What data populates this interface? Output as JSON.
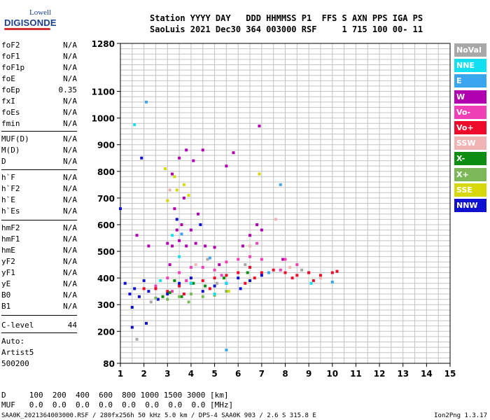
{
  "logo": {
    "top": "Lowell",
    "main": "DIGISONDE"
  },
  "header": {
    "line1": "Station YYYY DAY   DDD HHMMSS P1  FFS S AXN PPS IGA PS",
    "line2": "SaoLuis 2021 Dec30 364 003000 RSF     1 715 100 00- 11"
  },
  "params_group1": [
    {
      "name": "foF2",
      "value": "N/A"
    },
    {
      "name": "foF1",
      "value": "N/A"
    },
    {
      "name": "foF1p",
      "value": "N/A"
    },
    {
      "name": "foE",
      "value": "N/A"
    },
    {
      "name": "foEp",
      "value": "0.35"
    },
    {
      "name": "fxI",
      "value": "N/A"
    },
    {
      "name": "foEs",
      "value": "N/A"
    },
    {
      "name": "fmin",
      "value": "N/A"
    }
  ],
  "params_group2": [
    {
      "name": "MUF(D)",
      "value": "N/A"
    },
    {
      "name": "M(D)",
      "value": "N/A"
    },
    {
      "name": "D",
      "value": "N/A"
    }
  ],
  "params_group3": [
    {
      "name": "h`F",
      "value": "N/A"
    },
    {
      "name": "h`F2",
      "value": "N/A"
    },
    {
      "name": "h`E",
      "value": "N/A"
    },
    {
      "name": "h`Es",
      "value": "N/A"
    }
  ],
  "params_group4": [
    {
      "name": "hmF2",
      "value": "N/A"
    },
    {
      "name": "hmF1",
      "value": "N/A"
    },
    {
      "name": "hmE",
      "value": "N/A"
    },
    {
      "name": "yF2",
      "value": "N/A"
    },
    {
      "name": "yF1",
      "value": "N/A"
    },
    {
      "name": "yE",
      "value": "N/A"
    },
    {
      "name": "B0",
      "value": "N/A"
    },
    {
      "name": "B1",
      "value": "N/A"
    }
  ],
  "c_level": {
    "name": "C-level",
    "value": "44"
  },
  "auto": {
    "line1": "Auto:",
    "line2": "Artist5",
    "line3": "500200"
  },
  "footer": {
    "d_row": "D     100  200  400  600  800 1000 1500 3000 [km]",
    "muf_row": "MUF   0.0  0.0  0.0  0.0  0.0  0.0  0.0  0.0 [MHz]",
    "file_line": "SAA0K_2021364003000.RSF / 280fx256h 50 kHz 5.0 km / DPS-4 SAA0K 903 / 2.6 S 315.8 E",
    "version": "Ion2Png 1.3.17"
  },
  "legend": [
    {
      "label": "NoVal",
      "color": "#a8a8a8"
    },
    {
      "label": "NNE",
      "color": "#12e0f0"
    },
    {
      "label": "E",
      "color": "#3aa6f0"
    },
    {
      "label": "W",
      "color": "#b000b0"
    },
    {
      "label": "Vo-",
      "color": "#f040b8"
    },
    {
      "label": "Vo+",
      "color": "#ee0a2a"
    },
    {
      "label": "SSW",
      "color": "#f0b4b4"
    },
    {
      "label": "X-",
      "color": "#0c8c10"
    },
    {
      "label": "X+",
      "color": "#7cb85a"
    },
    {
      "label": "SSE",
      "color": "#d8d808"
    },
    {
      "label": "NNW",
      "color": "#1010d0"
    }
  ],
  "chart_data": {
    "type": "scatter",
    "title": "",
    "xlabel": "",
    "ylabel": "",
    "xlim": [
      1,
      15
    ],
    "ylim": [
      80,
      1280
    ],
    "x_ticks": [
      1,
      2,
      3,
      4,
      5,
      6,
      7,
      8,
      9,
      10,
      11,
      12,
      13,
      14,
      15
    ],
    "y_ticks": [
      80,
      200,
      300,
      400,
      500,
      600,
      700,
      800,
      900,
      1000,
      1100,
      1280
    ],
    "grid": true,
    "legend_position": "right",
    "series": [
      {
        "name": "W",
        "color": "#b000b0",
        "points": [
          [
            3.0,
            530
          ],
          [
            3.2,
            520
          ],
          [
            3.5,
            540
          ],
          [
            3.8,
            520
          ],
          [
            4.2,
            530
          ],
          [
            4.6,
            520
          ],
          [
            5.0,
            515
          ],
          [
            3.4,
            580
          ],
          [
            3.6,
            600
          ],
          [
            4.0,
            580
          ],
          [
            3.2,
            790
          ],
          [
            3.5,
            850
          ],
          [
            3.8,
            880
          ],
          [
            4.1,
            840
          ],
          [
            5.5,
            820
          ],
          [
            5.8,
            870
          ],
          [
            6.5,
            560
          ],
          [
            6.8,
            600
          ],
          [
            7.0,
            580
          ],
          [
            2.2,
            520
          ],
          [
            1.7,
            560
          ],
          [
            3.3,
            660
          ],
          [
            3.7,
            700
          ],
          [
            4.3,
            640
          ],
          [
            6.9,
            970
          ],
          [
            4.5,
            880
          ],
          [
            3.1,
            450
          ],
          [
            5.2,
            450
          ],
          [
            6.2,
            520
          ],
          [
            7.9,
            470
          ]
        ]
      },
      {
        "name": "Vo-",
        "color": "#f040b8",
        "points": [
          [
            3.0,
            400
          ],
          [
            3.5,
            420
          ],
          [
            4.0,
            440
          ],
          [
            4.5,
            440
          ],
          [
            5.0,
            430
          ],
          [
            5.5,
            460
          ],
          [
            6.0,
            470
          ],
          [
            6.5,
            480
          ],
          [
            7.0,
            470
          ],
          [
            8.0,
            470
          ],
          [
            8.5,
            450
          ],
          [
            9.0,
            420
          ],
          [
            2.5,
            370
          ],
          [
            3.2,
            350
          ],
          [
            6.8,
            530
          ],
          [
            7.8,
            430
          ],
          [
            3.8,
            390
          ],
          [
            5.3,
            410
          ]
        ]
      },
      {
        "name": "Vo+",
        "color": "#ee0a2a",
        "points": [
          [
            2.0,
            360
          ],
          [
            2.5,
            360
          ],
          [
            3.0,
            350
          ],
          [
            3.5,
            370
          ],
          [
            4.0,
            380
          ],
          [
            4.5,
            390
          ],
          [
            5.0,
            400
          ],
          [
            5.5,
            410
          ],
          [
            6.0,
            420
          ],
          [
            6.5,
            440
          ],
          [
            7.0,
            420
          ],
          [
            7.5,
            430
          ],
          [
            8.0,
            420
          ],
          [
            8.5,
            410
          ],
          [
            9.0,
            420
          ],
          [
            9.5,
            410
          ],
          [
            10.0,
            420
          ],
          [
            10.2,
            425
          ],
          [
            6.3,
            380
          ],
          [
            4.8,
            360
          ],
          [
            8.3,
            400
          ],
          [
            9.2,
            390
          ],
          [
            3.7,
            340
          ],
          [
            6.7,
            400
          ]
        ]
      },
      {
        "name": "NNW",
        "color": "#1010d0",
        "points": [
          [
            1.2,
            380
          ],
          [
            1.4,
            340
          ],
          [
            1.6,
            360
          ],
          [
            1.8,
            330
          ],
          [
            2.0,
            390
          ],
          [
            2.2,
            350
          ],
          [
            2.6,
            320
          ],
          [
            3.0,
            340
          ],
          [
            3.5,
            380
          ],
          [
            4.0,
            400
          ],
          [
            4.5,
            350
          ],
          [
            5.0,
            370
          ],
          [
            5.5,
            380
          ],
          [
            6.0,
            400
          ],
          [
            6.5,
            390
          ],
          [
            7.0,
            410
          ],
          [
            1.5,
            290
          ],
          [
            1.9,
            850
          ],
          [
            1.0,
            660
          ],
          [
            3.4,
            620
          ],
          [
            4.4,
            600
          ],
          [
            2.1,
            230
          ],
          [
            1.5,
            215
          ],
          [
            6.1,
            360
          ]
        ]
      },
      {
        "name": "X-",
        "color": "#0c8c10",
        "points": [
          [
            2.8,
            330
          ],
          [
            3.1,
            345
          ],
          [
            3.3,
            390
          ],
          [
            4.1,
            380
          ],
          [
            5.4,
            400
          ],
          [
            6.4,
            420
          ],
          [
            4.6,
            370
          ],
          [
            3.6,
            330
          ]
        ]
      },
      {
        "name": "X+",
        "color": "#7cb85a",
        "points": [
          [
            3.0,
            320
          ],
          [
            3.5,
            330
          ],
          [
            4.0,
            340
          ],
          [
            4.5,
            330
          ],
          [
            5.0,
            335
          ],
          [
            2.5,
            325
          ],
          [
            5.5,
            350
          ],
          [
            3.9,
            310
          ]
        ]
      },
      {
        "name": "SSE",
        "color": "#d8d808",
        "points": [
          [
            3.0,
            690
          ],
          [
            3.4,
            730
          ],
          [
            3.7,
            750
          ],
          [
            2.9,
            810
          ],
          [
            3.9,
            710
          ],
          [
            3.3,
            780
          ],
          [
            5.6,
            350
          ],
          [
            6.9,
            790
          ]
        ]
      },
      {
        "name": "NNE",
        "color": "#12e0f0",
        "points": [
          [
            1.6,
            975
          ],
          [
            3.2,
            560
          ],
          [
            3.5,
            480
          ],
          [
            4.0,
            380
          ],
          [
            5.0,
            340
          ],
          [
            5.5,
            380
          ],
          [
            9.1,
            380
          ],
          [
            2.7,
            390
          ]
        ]
      },
      {
        "name": "E",
        "color": "#3aa6f0",
        "points": [
          [
            2.1,
            1060
          ],
          [
            7.8,
            750
          ],
          [
            5.5,
            130
          ],
          [
            3.6,
            565
          ],
          [
            7.3,
            420
          ],
          [
            10.0,
            385
          ],
          [
            4.8,
            475
          ]
        ]
      },
      {
        "name": "SSW",
        "color": "#f0b4b4",
        "points": [
          [
            3.1,
            730
          ],
          [
            4.2,
            450
          ],
          [
            6.5,
            520
          ],
          [
            9.5,
            400
          ],
          [
            8.2,
            440
          ],
          [
            7.6,
            620
          ]
        ]
      },
      {
        "name": "NoVal",
        "color": "#a8a8a8",
        "points": [
          [
            2.3,
            310
          ],
          [
            4.7,
            470
          ],
          [
            6.3,
            450
          ],
          [
            8.7,
            430
          ],
          [
            5.1,
            380
          ],
          [
            1.7,
            170
          ]
        ]
      }
    ]
  }
}
